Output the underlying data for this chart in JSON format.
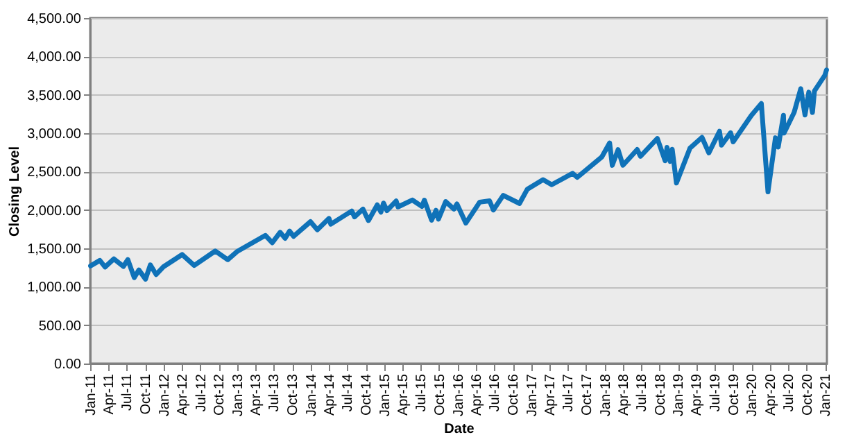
{
  "chart_data": {
    "type": "line",
    "xlabel": "Date",
    "ylabel": "Closing Level",
    "grid": "y",
    "marker": "none",
    "line_style": "solid",
    "x": [
      "2011-01-03",
      "2011-02-18",
      "2011-03-16",
      "2011-04-29",
      "2011-06-15",
      "2011-07-07",
      "2011-08-08",
      "2011-08-31",
      "2011-10-03",
      "2011-10-27",
      "2011-11-25",
      "2011-12-30",
      "2012-04-02",
      "2012-06-01",
      "2012-09-14",
      "2012-11-15",
      "2013-01-02",
      "2013-05-21",
      "2013-06-24",
      "2013-08-02",
      "2013-08-27",
      "2013-09-18",
      "2013-10-08",
      "2013-12-31",
      "2014-02-03",
      "2014-04-02",
      "2014-04-11",
      "2014-07-24",
      "2014-08-07",
      "2014-09-18",
      "2014-10-15",
      "2014-11-28",
      "2014-12-16",
      "2014-12-29",
      "2015-01-15",
      "2015-03-02",
      "2015-03-11",
      "2015-05-21",
      "2015-07-08",
      "2015-07-20",
      "2015-08-25",
      "2015-09-16",
      "2015-09-28",
      "2015-11-03",
      "2015-12-14",
      "2015-12-29",
      "2016-02-11",
      "2016-04-20",
      "2016-06-08",
      "2016-06-27",
      "2016-08-15",
      "2016-11-04",
      "2016-12-13",
      "2017-03-01",
      "2017-04-13",
      "2017-07-26",
      "2017-08-18",
      "2017-12-18",
      "2018-01-26",
      "2018-02-08",
      "2018-03-09",
      "2018-04-02",
      "2018-06-12",
      "2018-06-28",
      "2018-09-20",
      "2018-10-29",
      "2018-11-07",
      "2018-11-23",
      "2018-12-03",
      "2018-12-24",
      "2019-03-01",
      "2019-04-30",
      "2019-06-03",
      "2019-07-26",
      "2019-08-05",
      "2019-09-19",
      "2019-10-02",
      "2019-12-31",
      "2020-02-19",
      "2020-03-23",
      "2020-04-29",
      "2020-05-13",
      "2020-06-08",
      "2020-06-11",
      "2020-07-31",
      "2020-09-02",
      "2020-09-23",
      "2020-10-12",
      "2020-10-30",
      "2020-11-09",
      "2020-12-31",
      "2021-01-08"
    ],
    "series": [
      {
        "color": "#0f72b8",
        "values": [
          1271,
          1343,
          1257,
          1363,
          1265,
          1353,
          1119,
          1219,
          1099,
          1285,
          1159,
          1258,
          1419,
          1278,
          1466,
          1353,
          1462,
          1669,
          1573,
          1709,
          1631,
          1725,
          1656,
          1848,
          1741,
          1890,
          1815,
          1987,
          1910,
          2011,
          1862,
          2067,
          1972,
          2090,
          1992,
          2117,
          2040,
          2130,
          2046,
          2128,
          1867,
          1995,
          1881,
          2109,
          2012,
          2078,
          1829,
          2102,
          2119,
          2000,
          2190,
          2085,
          2271,
          2395,
          2329,
          2477,
          2425,
          2690,
          2873,
          2581,
          2786,
          2582,
          2787,
          2699,
          2931,
          2641,
          2814,
          2633,
          2790,
          2351,
          2804,
          2946,
          2744,
          3025,
          2844,
          3006,
          2887,
          3231,
          3386,
          2237,
          2940,
          2820,
          3232,
          3002,
          3271,
          3580,
          3237,
          3534,
          3270,
          3550,
          3756,
          3824
        ]
      }
    ],
    "xlim": [
      "2011-01-01",
      "2021-01-10"
    ],
    "xticks": [
      {
        "value": "2011-01-01",
        "label": "Jan-11"
      },
      {
        "value": "2011-04-01",
        "label": "Apr-11"
      },
      {
        "value": "2011-07-01",
        "label": "Jul-11"
      },
      {
        "value": "2011-10-01",
        "label": "Oct-11"
      },
      {
        "value": "2012-01-01",
        "label": "Jan-12"
      },
      {
        "value": "2012-04-01",
        "label": "Apr-12"
      },
      {
        "value": "2012-07-01",
        "label": "Jul-12"
      },
      {
        "value": "2012-10-01",
        "label": "Oct-12"
      },
      {
        "value": "2013-01-01",
        "label": "Jan-13"
      },
      {
        "value": "2013-04-01",
        "label": "Apr-13"
      },
      {
        "value": "2013-07-01",
        "label": "Jul-13"
      },
      {
        "value": "2013-10-01",
        "label": "Oct-13"
      },
      {
        "value": "2014-01-01",
        "label": "Jan-14"
      },
      {
        "value": "2014-04-01",
        "label": "Apr-14"
      },
      {
        "value": "2014-07-01",
        "label": "Jul-14"
      },
      {
        "value": "2014-10-01",
        "label": "Oct-14"
      },
      {
        "value": "2015-01-01",
        "label": "Jan-15"
      },
      {
        "value": "2015-04-01",
        "label": "Apr-15"
      },
      {
        "value": "2015-07-01",
        "label": "Jul-15"
      },
      {
        "value": "2015-10-01",
        "label": "Oct-15"
      },
      {
        "value": "2016-01-01",
        "label": "Jan-16"
      },
      {
        "value": "2016-04-01",
        "label": "Apr-16"
      },
      {
        "value": "2016-07-01",
        "label": "Jul-16"
      },
      {
        "value": "2016-10-01",
        "label": "Oct-16"
      },
      {
        "value": "2017-01-01",
        "label": "Jan-17"
      },
      {
        "value": "2017-04-01",
        "label": "Apr-17"
      },
      {
        "value": "2017-07-01",
        "label": "Jul-17"
      },
      {
        "value": "2017-10-01",
        "label": "Oct-17"
      },
      {
        "value": "2018-01-01",
        "label": "Jan-18"
      },
      {
        "value": "2018-04-01",
        "label": "Apr-18"
      },
      {
        "value": "2018-07-01",
        "label": "Jul-18"
      },
      {
        "value": "2018-10-01",
        "label": "Oct-18"
      },
      {
        "value": "2019-01-01",
        "label": "Jan-19"
      },
      {
        "value": "2019-04-01",
        "label": "Apr-19"
      },
      {
        "value": "2019-07-01",
        "label": "Jul-19"
      },
      {
        "value": "2019-10-01",
        "label": "Oct-19"
      },
      {
        "value": "2020-01-01",
        "label": "Jan-20"
      },
      {
        "value": "2020-04-01",
        "label": "Apr-20"
      },
      {
        "value": "2020-07-01",
        "label": "Jul-20"
      },
      {
        "value": "2020-10-01",
        "label": "Oct-20"
      },
      {
        "value": "2021-01-01",
        "label": "Jan-21"
      }
    ],
    "ylim": [
      0,
      4500
    ],
    "yticks": [
      {
        "value": 0,
        "label": "0.00"
      },
      {
        "value": 500,
        "label": "500.00"
      },
      {
        "value": 1000,
        "label": "1,000.00"
      },
      {
        "value": 1500,
        "label": "1,500.00"
      },
      {
        "value": 2000,
        "label": "2,000.00"
      },
      {
        "value": 2500,
        "label": "2,500.00"
      },
      {
        "value": 3000,
        "label": "3,000.00"
      },
      {
        "value": 3500,
        "label": "3,500.00"
      },
      {
        "value": 4000,
        "label": "4,000.00"
      },
      {
        "value": 4500,
        "label": "4,500.00"
      }
    ]
  }
}
